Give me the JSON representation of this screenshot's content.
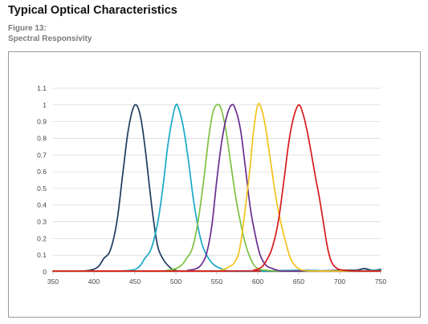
{
  "page": {
    "heading": "Typical Optical Characteristics",
    "figure_number": "Figure 13:",
    "figure_title": "Spectral Responsivity"
  },
  "chart_data": {
    "type": "line",
    "title": "",
    "xlabel": "",
    "ylabel": "",
    "xlim": [
      350,
      750
    ],
    "ylim": [
      0,
      1.1
    ],
    "x_ticks": [
      350,
      400,
      450,
      500,
      550,
      600,
      650,
      700,
      750
    ],
    "y_ticks": [
      0,
      0.1,
      0.2,
      0.3,
      0.4,
      0.5,
      0.6,
      0.7,
      0.8,
      0.9,
      1,
      1.1
    ],
    "y_tick_labels": [
      "0",
      "0.1",
      "0.2",
      "0.3",
      "0.4",
      "0.5",
      "0.6",
      "0.7",
      "0.8",
      "0.9",
      "1",
      "1.1"
    ],
    "grid": "horizontal",
    "legend": "none",
    "series": [
      {
        "color": "#1f3a5f",
        "points": [
          [
            350,
            0.005
          ],
          [
            380,
            0.005
          ],
          [
            395,
            0.01
          ],
          [
            405,
            0.03
          ],
          [
            412,
            0.08
          ],
          [
            420,
            0.13
          ],
          [
            428,
            0.3
          ],
          [
            435,
            0.58
          ],
          [
            441,
            0.82
          ],
          [
            446,
            0.95
          ],
          [
            450,
            1.0
          ],
          [
            454,
            0.98
          ],
          [
            458,
            0.9
          ],
          [
            463,
            0.72
          ],
          [
            468,
            0.5
          ],
          [
            473,
            0.3
          ],
          [
            478,
            0.15
          ],
          [
            484,
            0.08
          ],
          [
            490,
            0.04
          ],
          [
            496,
            0.015
          ],
          [
            505,
            0.005
          ],
          [
            520,
            0.005
          ],
          [
            560,
            0.005
          ],
          [
            600,
            0.005
          ],
          [
            640,
            0.005
          ],
          [
            660,
            0.01
          ],
          [
            670,
            0.005
          ],
          [
            700,
            0.01
          ],
          [
            720,
            0.01
          ],
          [
            730,
            0.02
          ],
          [
            740,
            0.01
          ],
          [
            750,
            0.015
          ]
        ]
      },
      {
        "color": "#17a8c7",
        "points": [
          [
            350,
            0.005
          ],
          [
            420,
            0.005
          ],
          [
            445,
            0.01
          ],
          [
            455,
            0.03
          ],
          [
            462,
            0.08
          ],
          [
            470,
            0.14
          ],
          [
            478,
            0.3
          ],
          [
            484,
            0.5
          ],
          [
            490,
            0.75
          ],
          [
            495,
            0.9
          ],
          [
            500,
            1.0
          ],
          [
            504,
            0.97
          ],
          [
            509,
            0.87
          ],
          [
            515,
            0.68
          ],
          [
            521,
            0.45
          ],
          [
            527,
            0.27
          ],
          [
            533,
            0.15
          ],
          [
            540,
            0.08
          ],
          [
            547,
            0.04
          ],
          [
            555,
            0.02
          ],
          [
            565,
            0.005
          ],
          [
            600,
            0.005
          ],
          [
            650,
            0.01
          ],
          [
            700,
            0.005
          ],
          [
            750,
            0.01
          ]
        ]
      },
      {
        "color": "#7cc142",
        "points": [
          [
            350,
            0.005
          ],
          [
            470,
            0.005
          ],
          [
            490,
            0.01
          ],
          [
            500,
            0.02
          ],
          [
            507,
            0.04
          ],
          [
            513,
            0.08
          ],
          [
            520,
            0.14
          ],
          [
            527,
            0.3
          ],
          [
            534,
            0.55
          ],
          [
            540,
            0.8
          ],
          [
            545,
            0.95
          ],
          [
            550,
            1.0
          ],
          [
            555,
            0.98
          ],
          [
            561,
            0.85
          ],
          [
            567,
            0.65
          ],
          [
            573,
            0.45
          ],
          [
            580,
            0.27
          ],
          [
            586,
            0.15
          ],
          [
            593,
            0.06
          ],
          [
            600,
            0.02
          ],
          [
            610,
            0.01
          ],
          [
            625,
            0.005
          ],
          [
            660,
            0.005
          ],
          [
            700,
            0.005
          ],
          [
            750,
            0.005
          ]
        ]
      },
      {
        "color": "#6b2d8e",
        "points": [
          [
            350,
            0.005
          ],
          [
            500,
            0.005
          ],
          [
            515,
            0.01
          ],
          [
            525,
            0.02
          ],
          [
            532,
            0.05
          ],
          [
            538,
            0.12
          ],
          [
            544,
            0.28
          ],
          [
            550,
            0.55
          ],
          [
            556,
            0.78
          ],
          [
            562,
            0.93
          ],
          [
            568,
            1.0
          ],
          [
            573,
            0.97
          ],
          [
            579,
            0.85
          ],
          [
            585,
            0.62
          ],
          [
            591,
            0.38
          ],
          [
            597,
            0.22
          ],
          [
            603,
            0.1
          ],
          [
            610,
            0.04
          ],
          [
            618,
            0.02
          ],
          [
            630,
            0.005
          ],
          [
            660,
            0.005
          ],
          [
            700,
            0.005
          ],
          [
            750,
            0.005
          ]
        ]
      },
      {
        "color": "#f2c31b",
        "points": [
          [
            350,
            0.005
          ],
          [
            540,
            0.005
          ],
          [
            555,
            0.01
          ],
          [
            565,
            0.03
          ],
          [
            572,
            0.06
          ],
          [
            578,
            0.14
          ],
          [
            584,
            0.35
          ],
          [
            590,
            0.6
          ],
          [
            595,
            0.85
          ],
          [
            600,
            1.0
          ],
          [
            605,
            0.97
          ],
          [
            610,
            0.85
          ],
          [
            616,
            0.65
          ],
          [
            622,
            0.45
          ],
          [
            628,
            0.3
          ],
          [
            634,
            0.18
          ],
          [
            640,
            0.08
          ],
          [
            647,
            0.03
          ],
          [
            655,
            0.01
          ],
          [
            670,
            0.005
          ],
          [
            700,
            0.005
          ],
          [
            750,
            0.005
          ]
        ]
      },
      {
        "color": "#d7191c",
        "points": [
          [
            350,
            0.005
          ],
          [
            580,
            0.005
          ],
          [
            595,
            0.01
          ],
          [
            605,
            0.03
          ],
          [
            612,
            0.08
          ],
          [
            618,
            0.15
          ],
          [
            625,
            0.3
          ],
          [
            632,
            0.55
          ],
          [
            638,
            0.78
          ],
          [
            644,
            0.93
          ],
          [
            650,
            1.0
          ],
          [
            655,
            0.95
          ],
          [
            660,
            0.85
          ],
          [
            665,
            0.72
          ],
          [
            670,
            0.58
          ],
          [
            675,
            0.45
          ],
          [
            680,
            0.3
          ],
          [
            685,
            0.15
          ],
          [
            690,
            0.06
          ],
          [
            697,
            0.02
          ],
          [
            705,
            0.01
          ],
          [
            720,
            0.005
          ],
          [
            750,
            0.005
          ]
        ]
      }
    ]
  }
}
